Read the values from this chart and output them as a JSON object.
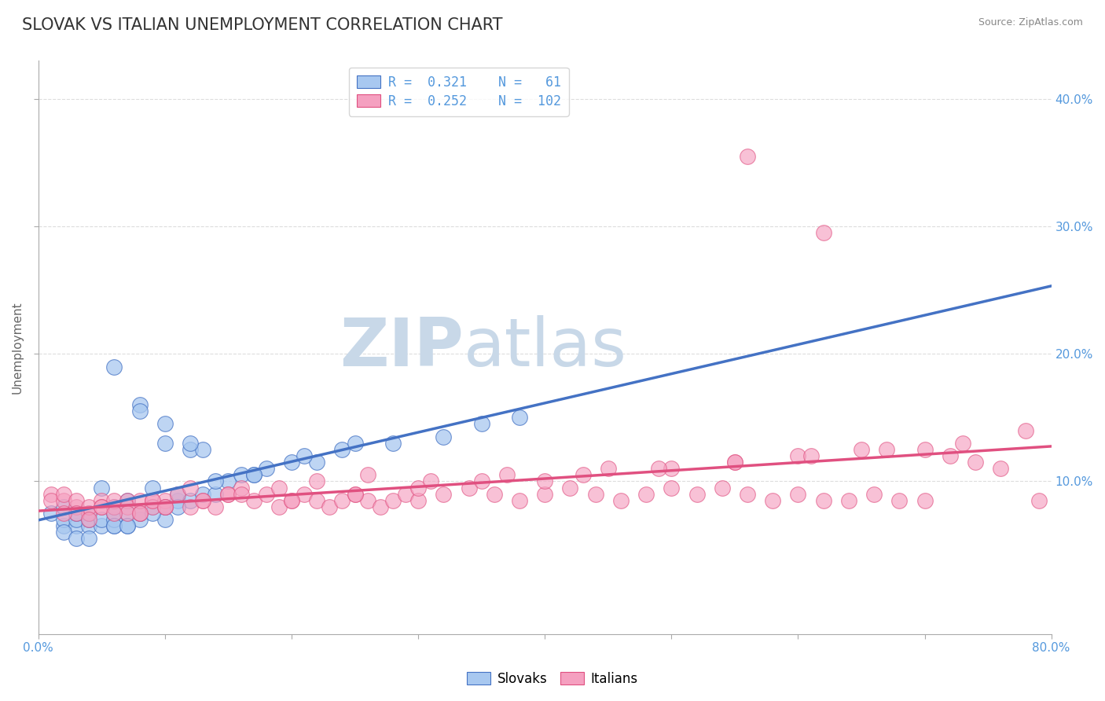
{
  "title": "SLOVAK VS ITALIAN UNEMPLOYMENT CORRELATION CHART",
  "source_text": "Source: ZipAtlas.com",
  "ylabel": "Unemployment",
  "xlim": [
    0.0,
    0.8
  ],
  "ylim": [
    -0.02,
    0.43
  ],
  "yticks": [
    0.1,
    0.2,
    0.3,
    0.4
  ],
  "ytick_labels": [
    "10.0%",
    "20.0%",
    "30.0%",
    "40.0%"
  ],
  "xticks": [
    0.0,
    0.1,
    0.2,
    0.3,
    0.4,
    0.5,
    0.6,
    0.7,
    0.8
  ],
  "xtick_labels": [
    "0.0%",
    "",
    "",
    "",
    "",
    "",
    "",
    "",
    "80.0%"
  ],
  "blue_color": "#A8C8F0",
  "pink_color": "#F5A0C0",
  "blue_line_color": "#4472C4",
  "pink_line_color": "#E05080",
  "dash_line_color": "#AAAAAA",
  "legend_r_blue": "R =  0.321",
  "legend_n_blue": "N =   61",
  "legend_r_pink": "R =  0.252",
  "legend_n_pink": "N =  102",
  "watermark_zip": "ZIP",
  "watermark_atlas": "atlas",
  "watermark_color": "#C8D8E8",
  "slovak_x": [
    0.01,
    0.02,
    0.02,
    0.02,
    0.03,
    0.03,
    0.03,
    0.04,
    0.04,
    0.04,
    0.05,
    0.05,
    0.05,
    0.06,
    0.06,
    0.06,
    0.06,
    0.07,
    0.07,
    0.07,
    0.08,
    0.08,
    0.08,
    0.09,
    0.09,
    0.1,
    0.1,
    0.1,
    0.11,
    0.11,
    0.12,
    0.12,
    0.13,
    0.13,
    0.14,
    0.15,
    0.16,
    0.17,
    0.18,
    0.2,
    0.22,
    0.24,
    0.28,
    0.32,
    0.35,
    0.38,
    0.06,
    0.08,
    0.1,
    0.12,
    0.14,
    0.17,
    0.21,
    0.25,
    0.02,
    0.03,
    0.04,
    0.06,
    0.07,
    0.09,
    0.11
  ],
  "slovak_y": [
    0.075,
    0.065,
    0.07,
    0.08,
    0.065,
    0.07,
    0.075,
    0.065,
    0.07,
    0.075,
    0.065,
    0.07,
    0.095,
    0.065,
    0.07,
    0.075,
    0.08,
    0.065,
    0.075,
    0.085,
    0.07,
    0.075,
    0.16,
    0.08,
    0.095,
    0.07,
    0.08,
    0.13,
    0.085,
    0.09,
    0.085,
    0.125,
    0.09,
    0.125,
    0.09,
    0.1,
    0.105,
    0.105,
    0.11,
    0.115,
    0.115,
    0.125,
    0.13,
    0.135,
    0.145,
    0.15,
    0.19,
    0.155,
    0.145,
    0.13,
    0.1,
    0.105,
    0.12,
    0.13,
    0.06,
    0.055,
    0.055,
    0.065,
    0.065,
    0.075,
    0.08
  ],
  "italian_x": [
    0.01,
    0.01,
    0.02,
    0.02,
    0.03,
    0.03,
    0.04,
    0.04,
    0.05,
    0.05,
    0.06,
    0.06,
    0.07,
    0.07,
    0.08,
    0.08,
    0.09,
    0.09,
    0.1,
    0.1,
    0.11,
    0.12,
    0.13,
    0.14,
    0.15,
    0.16,
    0.17,
    0.18,
    0.19,
    0.2,
    0.21,
    0.22,
    0.23,
    0.24,
    0.25,
    0.26,
    0.27,
    0.28,
    0.29,
    0.3,
    0.32,
    0.34,
    0.36,
    0.38,
    0.4,
    0.42,
    0.44,
    0.46,
    0.48,
    0.5,
    0.52,
    0.54,
    0.56,
    0.58,
    0.6,
    0.62,
    0.64,
    0.66,
    0.68,
    0.7,
    0.03,
    0.05,
    0.07,
    0.09,
    0.12,
    0.15,
    0.2,
    0.25,
    0.3,
    0.35,
    0.4,
    0.45,
    0.5,
    0.55,
    0.6,
    0.65,
    0.7,
    0.72,
    0.74,
    0.76,
    0.02,
    0.04,
    0.06,
    0.08,
    0.1,
    0.13,
    0.16,
    0.19,
    0.22,
    0.26,
    0.31,
    0.37,
    0.43,
    0.49,
    0.55,
    0.61,
    0.67,
    0.73,
    0.78,
    0.79,
    0.56,
    0.62
  ],
  "italian_y": [
    0.09,
    0.085,
    0.085,
    0.09,
    0.08,
    0.085,
    0.075,
    0.08,
    0.085,
    0.08,
    0.08,
    0.085,
    0.085,
    0.08,
    0.075,
    0.085,
    0.085,
    0.08,
    0.085,
    0.08,
    0.09,
    0.095,
    0.085,
    0.08,
    0.09,
    0.095,
    0.085,
    0.09,
    0.08,
    0.085,
    0.09,
    0.085,
    0.08,
    0.085,
    0.09,
    0.085,
    0.08,
    0.085,
    0.09,
    0.085,
    0.09,
    0.095,
    0.09,
    0.085,
    0.09,
    0.095,
    0.09,
    0.085,
    0.09,
    0.095,
    0.09,
    0.095,
    0.09,
    0.085,
    0.09,
    0.085,
    0.085,
    0.09,
    0.085,
    0.085,
    0.075,
    0.08,
    0.075,
    0.085,
    0.08,
    0.09,
    0.085,
    0.09,
    0.095,
    0.1,
    0.1,
    0.11,
    0.11,
    0.115,
    0.12,
    0.125,
    0.125,
    0.12,
    0.115,
    0.11,
    0.075,
    0.07,
    0.075,
    0.075,
    0.08,
    0.085,
    0.09,
    0.095,
    0.1,
    0.105,
    0.1,
    0.105,
    0.105,
    0.11,
    0.115,
    0.12,
    0.125,
    0.13,
    0.14,
    0.085,
    0.355,
    0.295
  ],
  "grid_color": "#DDDDDD",
  "axis_color": "#AAAAAA",
  "tick_color": "#5599DD",
  "title_color": "#333333",
  "title_fontsize": 15,
  "label_fontsize": 11,
  "tick_fontsize": 11,
  "source_fontsize": 9
}
